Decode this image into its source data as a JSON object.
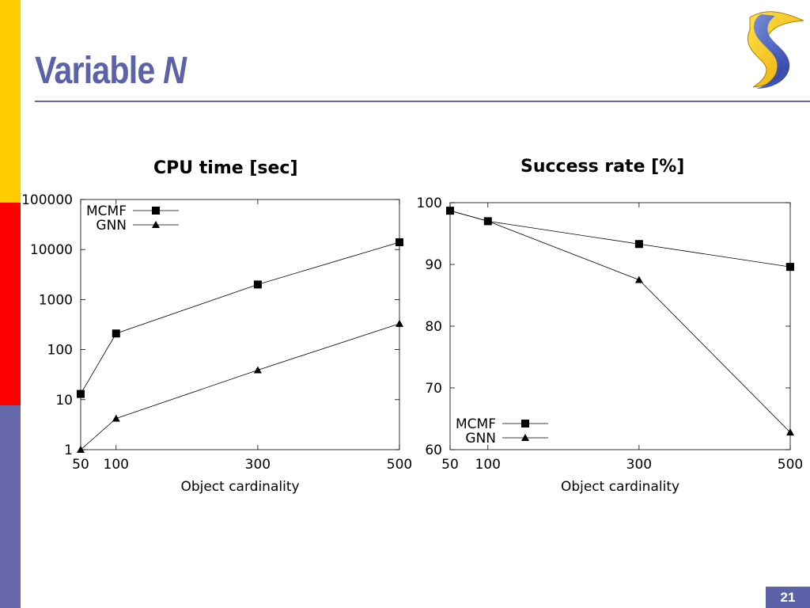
{
  "slide": {
    "title_main": "Variable",
    "title_var": "N",
    "page_number": "21",
    "colors": {
      "title": "#5B62A8",
      "sidebar": [
        "#FFCC00",
        "#FF0000",
        "#6666AA"
      ]
    },
    "logo_icon": "flame-s-logo-icon"
  },
  "chart_data": [
    {
      "type": "line",
      "title": "CPU time [sec]",
      "xlabel": "Object cardinality",
      "ylabel": "",
      "x": [
        50,
        100,
        300,
        500
      ],
      "xticks": [
        "50",
        "100",
        "300",
        "500"
      ],
      "yscale": "log",
      "ylim": [
        1,
        100000
      ],
      "yticks": [
        "1",
        "10",
        "100",
        "1000",
        "10000",
        "100000"
      ],
      "legend_position": "top-left",
      "grid": false,
      "series": [
        {
          "name": "MCMF",
          "marker": "square",
          "values": [
            13,
            210,
            2000,
            14000
          ]
        },
        {
          "name": "GNN",
          "marker": "triangle",
          "values": [
            1,
            4.2,
            39,
            330
          ]
        }
      ]
    },
    {
      "type": "line",
      "title": "Success rate [%]",
      "xlabel": "Object cardinality",
      "ylabel": "",
      "x": [
        50,
        100,
        300,
        500
      ],
      "xticks": [
        "50",
        "100",
        "300",
        "500"
      ],
      "yscale": "linear",
      "ylim": [
        60,
        100
      ],
      "yticks": [
        "60",
        "70",
        "80",
        "90",
        "100"
      ],
      "legend_position": "bottom-left",
      "grid": false,
      "series": [
        {
          "name": "MCMF",
          "marker": "square",
          "values": [
            98.7,
            97,
            93.3,
            89.6
          ]
        },
        {
          "name": "GNN",
          "marker": "triangle",
          "values": [
            98.7,
            97,
            87.5,
            62.8
          ]
        }
      ]
    }
  ]
}
